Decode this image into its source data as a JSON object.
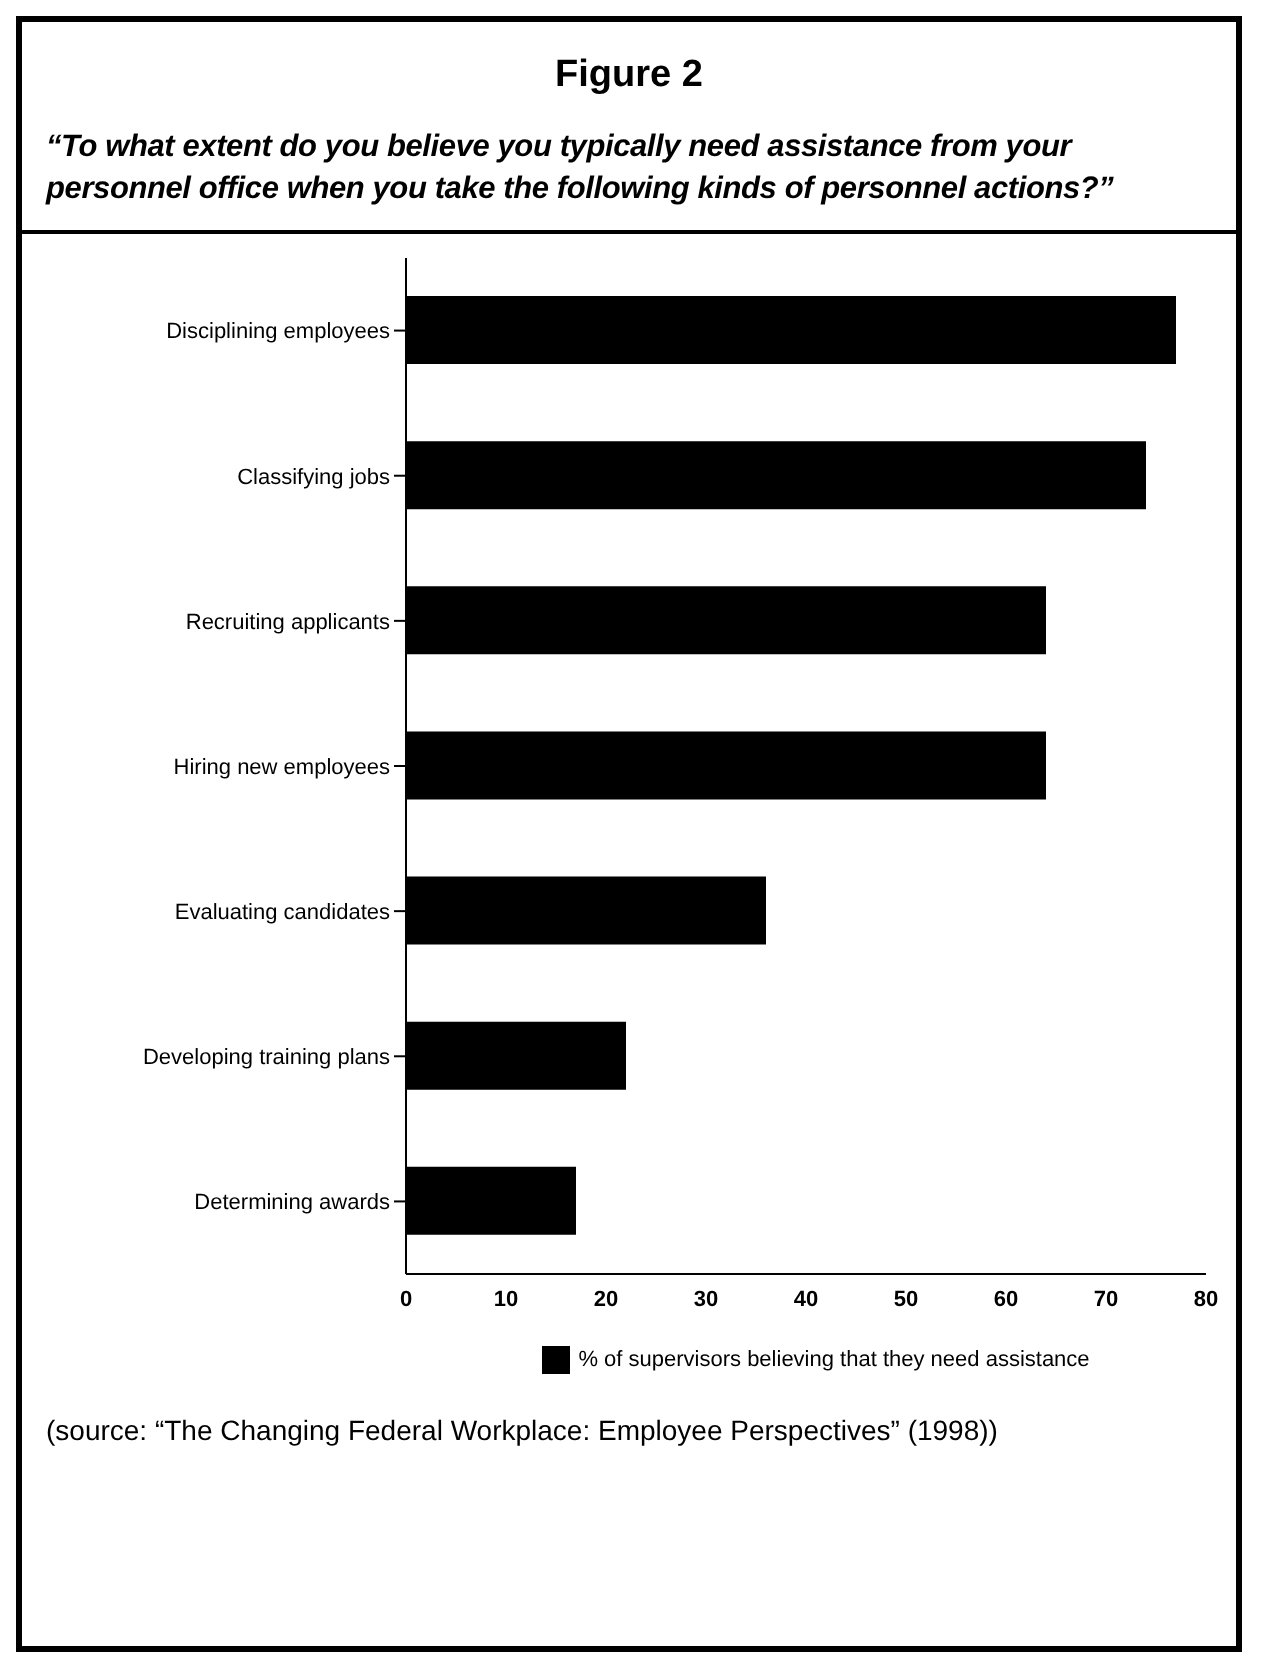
{
  "chart_data": {
    "type": "bar",
    "orientation": "horizontal",
    "title": "Figure 2",
    "subtitle": "“To what extent do you believe you typically need assistance from your personnel office when you take the following kinds of personnel actions?”",
    "categories": [
      "Disciplining employees",
      "Classifying jobs",
      "Recruiting applicants",
      "Hiring new employees",
      "Evaluating candidates",
      "Developing training plans",
      "Determining awards"
    ],
    "series": [
      {
        "name": "% of supervisors believing that they need assistance",
        "color": "#000000",
        "values": [
          77,
          74,
          64,
          64,
          36,
          22,
          17
        ]
      }
    ],
    "xlim": [
      0,
      80
    ],
    "xticks": [
      0,
      10,
      20,
      30,
      40,
      50,
      60,
      70,
      80
    ],
    "legend": "bottom",
    "annotations": [
      "(source: “The Changing Federal Workplace: Employee Perspectives” (1998))"
    ]
  }
}
